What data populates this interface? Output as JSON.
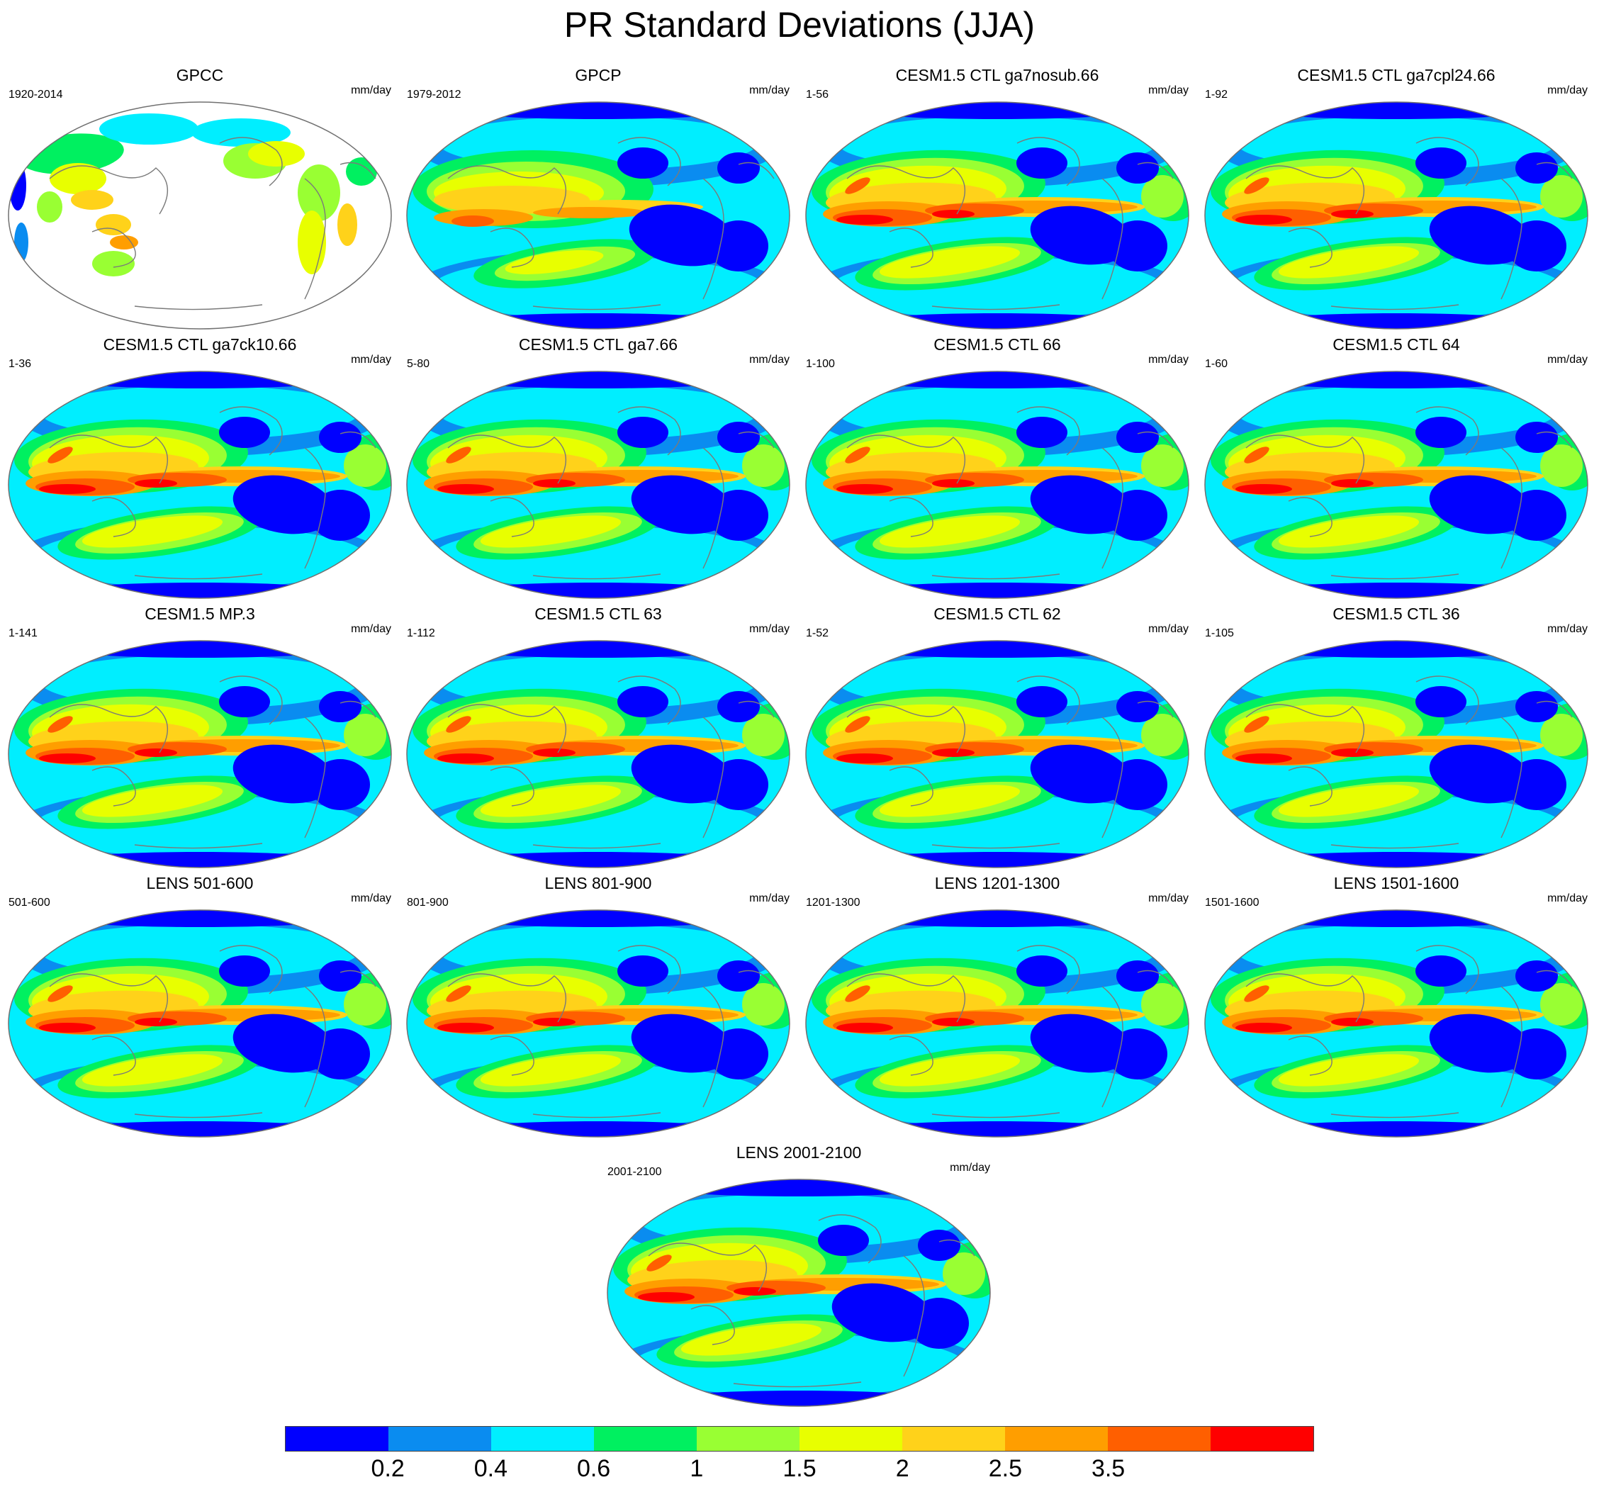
{
  "title": "PR Standard Deviations (JJA)",
  "colors": {
    "land_only_background": "#ffffff",
    "coastline": "#7a7a7a",
    "map_border": "#707070"
  },
  "panels": [
    {
      "title": "GPCC",
      "range": "1920-2014",
      "units": "mm/day",
      "style": "land"
    },
    {
      "title": "GPCP",
      "range": "1979-2012",
      "units": "mm/day",
      "style": "obs"
    },
    {
      "title": "CESM1.5 CTL ga7nosub.66",
      "range": "1-56",
      "units": "mm/day",
      "style": "model"
    },
    {
      "title": "CESM1.5 CTL ga7cpl24.66",
      "range": "1-92",
      "units": "mm/day",
      "style": "model"
    },
    {
      "title": "CESM1.5 CTL ga7ck10.66",
      "range": "1-36",
      "units": "mm/day",
      "style": "model"
    },
    {
      "title": "CESM1.5 CTL ga7.66",
      "range": "5-80",
      "units": "mm/day",
      "style": "model"
    },
    {
      "title": "CESM1.5 CTL 66",
      "range": "1-100",
      "units": "mm/day",
      "style": "model"
    },
    {
      "title": "CESM1.5 CTL 64",
      "range": "1-60",
      "units": "mm/day",
      "style": "model"
    },
    {
      "title": "CESM1.5 MP.3",
      "range": "1-141",
      "units": "mm/day",
      "style": "model"
    },
    {
      "title": "CESM1.5 CTL 63",
      "range": "1-112",
      "units": "mm/day",
      "style": "model"
    },
    {
      "title": "CESM1.5 CTL 62",
      "range": "1-52",
      "units": "mm/day",
      "style": "model"
    },
    {
      "title": "CESM1.5 CTL 36",
      "range": "1-105",
      "units": "mm/day",
      "style": "model"
    },
    {
      "title": "LENS 501-600",
      "range": "501-600",
      "units": "mm/day",
      "style": "model"
    },
    {
      "title": "LENS 801-900",
      "range": "801-900",
      "units": "mm/day",
      "style": "model"
    },
    {
      "title": "LENS 1201-1300",
      "range": "1201-1300",
      "units": "mm/day",
      "style": "model"
    },
    {
      "title": "LENS 1501-1600",
      "range": "1501-1600",
      "units": "mm/day",
      "style": "model"
    },
    {
      "title": "LENS 2001-2100",
      "range": "2001-2100",
      "units": "mm/day",
      "style": "model"
    }
  ],
  "colorbar": {
    "colors": [
      "#0000ff",
      "#0a8cf0",
      "#00eeff",
      "#00f060",
      "#99ff33",
      "#e8ff00",
      "#ffd21a",
      "#ff9e00",
      "#ff5f00",
      "#ff0000"
    ],
    "ticks": [
      "0.2",
      "0.4",
      "0.6",
      "1",
      "1.5",
      "2",
      "2.5",
      "3.5"
    ]
  }
}
